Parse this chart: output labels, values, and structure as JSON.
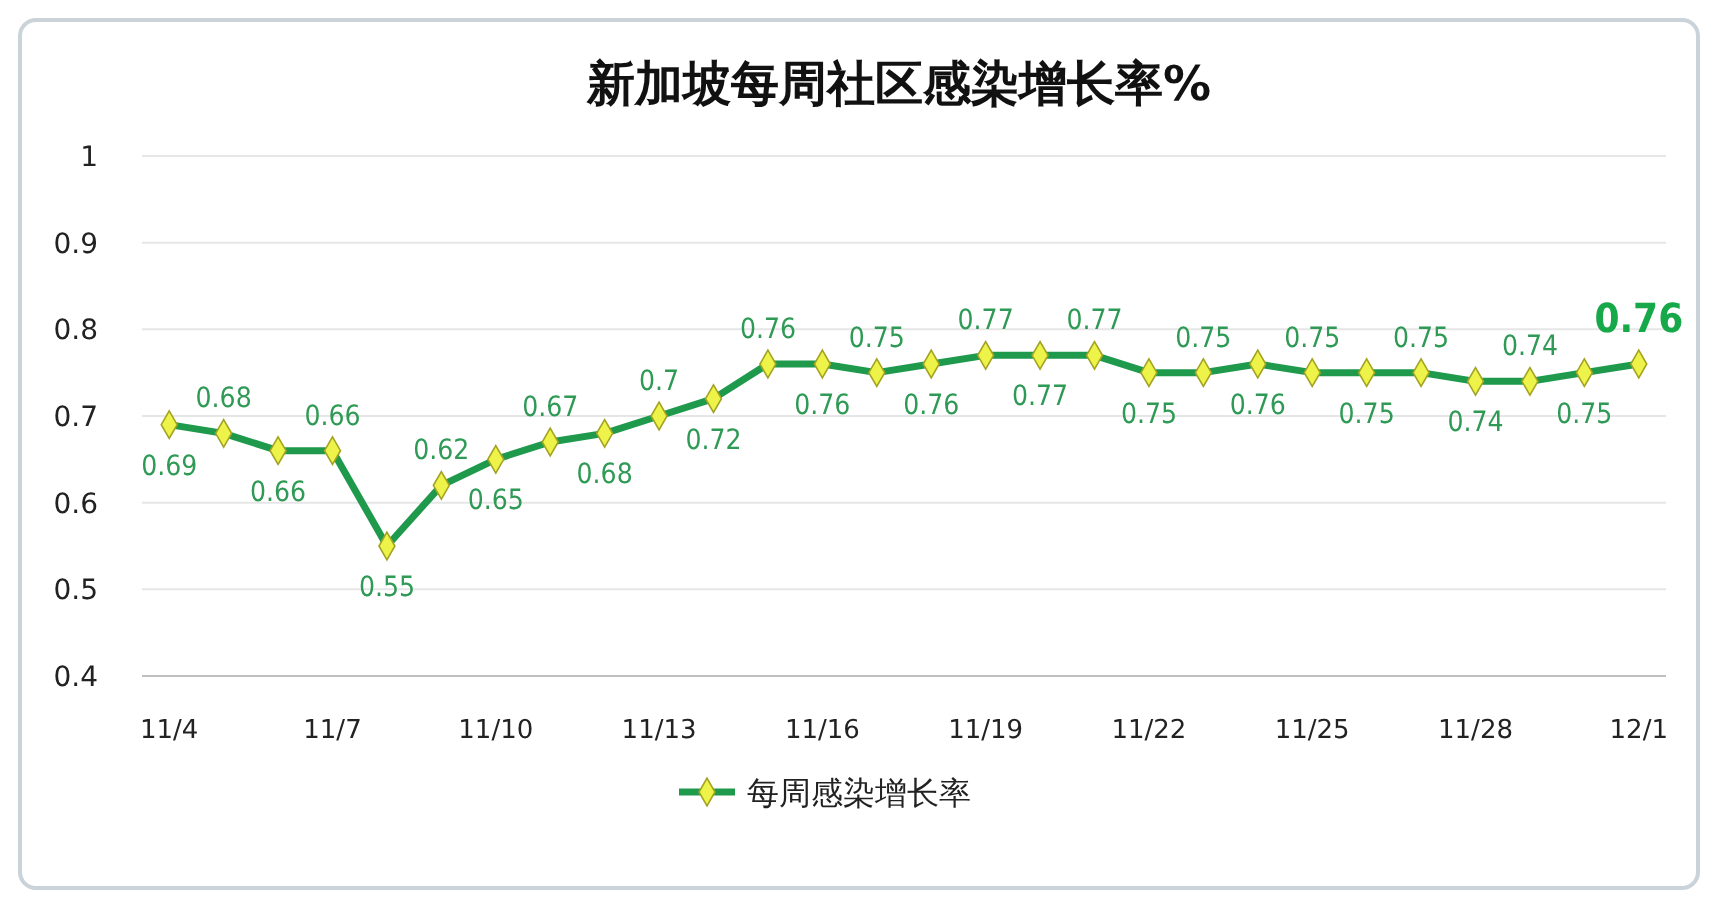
{
  "chart_data": {
    "type": "line",
    "title": "新加坡每周社区感染增长率%",
    "categories": [
      "11/4",
      null,
      null,
      "11/7",
      null,
      null,
      "11/10",
      null,
      null,
      "11/13",
      null,
      null,
      "11/16",
      null,
      null,
      "11/19",
      null,
      null,
      "11/22",
      null,
      null,
      "11/25",
      null,
      null,
      "11/28",
      null,
      null,
      "12/1"
    ],
    "series": [
      {
        "name": "每周感染增长率",
        "color": "#1f9a4c",
        "values": [
          0.69,
          0.68,
          0.66,
          0.66,
          0.55,
          0.62,
          0.65,
          0.67,
          0.68,
          0.7,
          0.72,
          0.76,
          0.76,
          0.75,
          0.76,
          0.77,
          0.77,
          0.77,
          0.75,
          0.75,
          0.76,
          0.75,
          0.75,
          0.75,
          0.74,
          0.74,
          0.75,
          0.76
        ]
      }
    ],
    "ylim": [
      0.4,
      1
    ],
    "yticks": [
      0.4,
      0.5,
      0.6,
      0.7,
      0.8,
      0.9,
      1
    ],
    "grid": "y",
    "legend": "bottom",
    "marker": "diamond",
    "line_style": "solid",
    "data_labels": true
  }
}
